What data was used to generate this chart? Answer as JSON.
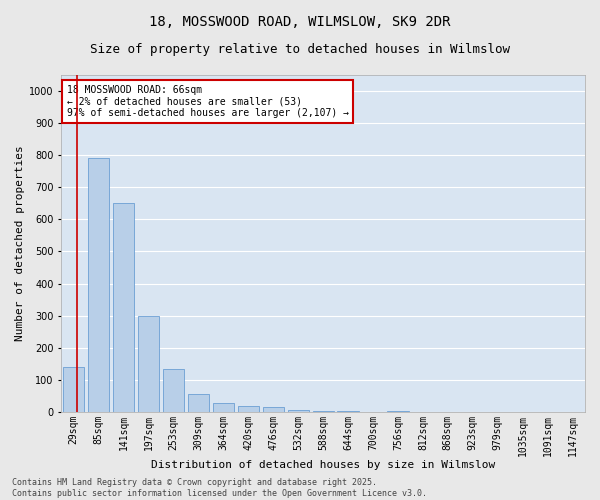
{
  "title": "18, MOSSWOOD ROAD, WILMSLOW, SK9 2DR",
  "subtitle": "Size of property relative to detached houses in Wilmslow",
  "xlabel": "Distribution of detached houses by size in Wilmslow",
  "ylabel": "Number of detached properties",
  "categories": [
    "29sqm",
    "85sqm",
    "141sqm",
    "197sqm",
    "253sqm",
    "309sqm",
    "364sqm",
    "420sqm",
    "476sqm",
    "532sqm",
    "588sqm",
    "644sqm",
    "700sqm",
    "756sqm",
    "812sqm",
    "868sqm",
    "923sqm",
    "979sqm",
    "1035sqm",
    "1091sqm",
    "1147sqm"
  ],
  "values": [
    140,
    790,
    650,
    300,
    135,
    55,
    28,
    18,
    15,
    7,
    3,
    3,
    1,
    3,
    0,
    0,
    0,
    1,
    0,
    0,
    0
  ],
  "bar_color": "#b8cfe8",
  "bar_edgecolor": "#6b9fd4",
  "annotation_text_line1": "18 MOSSWOOD ROAD: 66sqm",
  "annotation_text_line2": "← 2% of detached houses are smaller (53)",
  "annotation_text_line3": "97% of semi-detached houses are larger (2,107) →",
  "annotation_box_color": "#ffffff",
  "annotation_box_edgecolor": "#cc0000",
  "vline_color": "#cc0000",
  "ylim": [
    0,
    1050
  ],
  "yticks": [
    0,
    100,
    200,
    300,
    400,
    500,
    600,
    700,
    800,
    900,
    1000
  ],
  "background_color": "#d9e5f2",
  "fig_background_color": "#e8e8e8",
  "grid_color": "#ffffff",
  "footer_line1": "Contains HM Land Registry data © Crown copyright and database right 2025.",
  "footer_line2": "Contains public sector information licensed under the Open Government Licence v3.0.",
  "title_fontsize": 10,
  "subtitle_fontsize": 9,
  "axis_label_fontsize": 8,
  "tick_fontsize": 7,
  "annotation_fontsize": 7,
  "footer_fontsize": 6
}
